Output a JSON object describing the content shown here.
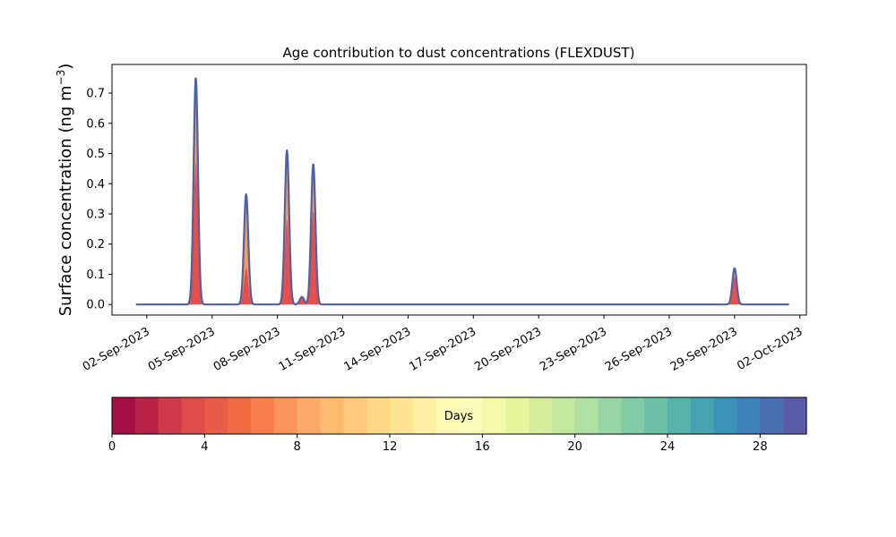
{
  "chart_data": {
    "type": "area",
    "title": "Age contribution to dust concentrations (FLEXDUST)",
    "ylabel": "Surface concentration (ng m",
    "ylabel_sup": "−3",
    "ylabel_close": ")",
    "ylim": [
      -0.035,
      0.795
    ],
    "xlim": [
      "2023-08-31T09:36",
      "2023-10-02T07:12"
    ],
    "grid": false,
    "yticks": [
      0.0,
      0.1,
      0.2,
      0.3,
      0.4,
      0.5,
      0.6,
      0.7
    ],
    "ytick_labels": [
      "0.0",
      "0.1",
      "0.2",
      "0.3",
      "0.4",
      "0.5",
      "0.6",
      "0.7"
    ],
    "xticks": [
      "2023-09-02",
      "2023-09-05",
      "2023-09-08",
      "2023-09-11",
      "2023-09-14",
      "2023-09-17",
      "2023-09-20",
      "2023-09-23",
      "2023-09-26",
      "2023-09-29",
      "2023-10-02"
    ],
    "xtick_labels": [
      "02-Sep-2023",
      "05-Sep-2023",
      "08-Sep-2023",
      "11-Sep-2023",
      "14-Sep-2023",
      "17-Sep-2023",
      "20-Sep-2023",
      "23-Sep-2023",
      "26-Sep-2023",
      "29-Sep-2023",
      "02-Oct-2023"
    ],
    "x_range_data": [
      "2023-09-01T12:00",
      "2023-10-01T12:00"
    ],
    "peaks": [
      {
        "center": "2023-09-04T06:00",
        "total": 0.75,
        "young": 0.47
      },
      {
        "center": "2023-09-06T13:30",
        "total": 0.365,
        "young": 0.12
      },
      {
        "center": "2023-09-08T10:30",
        "total": 0.51,
        "young": 0.28
      },
      {
        "center": "2023-09-09T03:00",
        "total": 0.025,
        "young": 0.02
      },
      {
        "center": "2023-09-09T15:30",
        "total": 0.465,
        "young": 0.31
      },
      {
        "center": "2023-09-29T00:00",
        "total": 0.12,
        "young": 0.09
      }
    ],
    "series_colors": {
      "total_line": "#4a62a8",
      "young_fill": "#e7504a",
      "mid_fill": "#f79c5c"
    }
  },
  "colorbar": {
    "label": "Days",
    "min": 0,
    "max": 30,
    "ticks": [
      0,
      4,
      8,
      12,
      16,
      20,
      24,
      28
    ],
    "tick_labels": [
      "0",
      "4",
      "8",
      "12",
      "16",
      "20",
      "24",
      "28"
    ],
    "colors": [
      "#a50f44",
      "#bb2247",
      "#cf3a4c",
      "#df4d4a",
      "#e95c47",
      "#f06b44",
      "#f57e4a",
      "#f9955a",
      "#fca96a",
      "#fdbb70",
      "#fdc87a",
      "#fed684",
      "#fee392",
      "#fff0a4",
      "#fffab4",
      "#fbfdbb",
      "#f2faa8",
      "#e6f59a",
      "#d6ee9b",
      "#c4e79e",
      "#b0dfa2",
      "#98d5a5",
      "#80cca5",
      "#6ac1a6",
      "#56b3aa",
      "#47a3af",
      "#3992b8",
      "#3c82bb",
      "#4a6fb0",
      "#5a5ca8"
    ]
  }
}
